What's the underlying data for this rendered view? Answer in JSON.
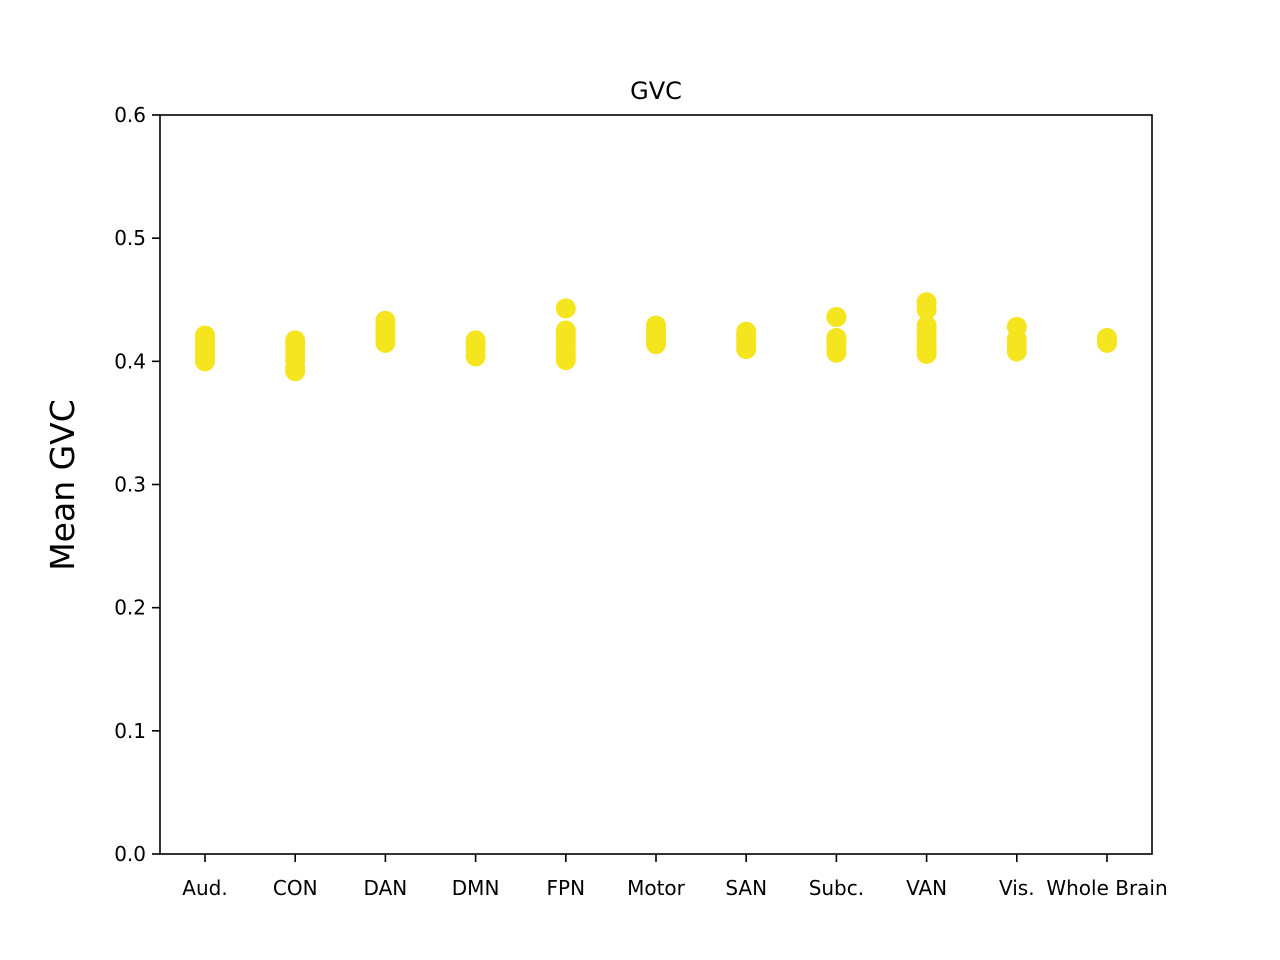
{
  "chart_data": {
    "type": "scatter",
    "title": "GVC",
    "xlabel": "",
    "ylabel": "Mean GVC",
    "ylim": [
      0,
      0.6
    ],
    "yticks": [
      "0.0",
      "0.1",
      "0.2",
      "0.3",
      "0.4",
      "0.5",
      "0.6"
    ],
    "categories": [
      "Aud.",
      "CON",
      "DAN",
      "DMN",
      "FPN",
      "Motor",
      "SAN",
      "Subc.",
      "VAN",
      "Vis.",
      "Whole Brain"
    ],
    "marker_color": "#f5e51f",
    "grid": false,
    "series": [
      {
        "category": "Aud.",
        "values": [
          0.4,
          0.403,
          0.406,
          0.409,
          0.412,
          0.415,
          0.418,
          0.421
        ]
      },
      {
        "category": "CON",
        "values": [
          0.392,
          0.395,
          0.401,
          0.406,
          0.41,
          0.414,
          0.417
        ]
      },
      {
        "category": "DAN",
        "values": [
          0.415,
          0.418,
          0.421,
          0.424,
          0.427,
          0.43,
          0.433
        ]
      },
      {
        "category": "DMN",
        "values": [
          0.404,
          0.41,
          0.414,
          0.417
        ]
      },
      {
        "category": "FPN",
        "values": [
          0.401,
          0.404,
          0.407,
          0.41,
          0.413,
          0.416,
          0.419,
          0.422,
          0.425,
          0.443
        ]
      },
      {
        "category": "Motor",
        "values": [
          0.414,
          0.417,
          0.42,
          0.423,
          0.426,
          0.429
        ]
      },
      {
        "category": "SAN",
        "values": [
          0.41,
          0.413,
          0.416,
          0.419,
          0.421,
          0.424
        ]
      },
      {
        "category": "Subc.",
        "values": [
          0.407,
          0.411,
          0.415,
          0.419,
          0.436
        ]
      },
      {
        "category": "VAN",
        "values": [
          0.406,
          0.409,
          0.413,
          0.417,
          0.421,
          0.425,
          0.429,
          0.442,
          0.448
        ]
      },
      {
        "category": "Vis.",
        "values": [
          0.408,
          0.412,
          0.415,
          0.418,
          0.428
        ]
      },
      {
        "category": "Whole Brain",
        "values": [
          0.415,
          0.417,
          0.419
        ]
      }
    ]
  }
}
